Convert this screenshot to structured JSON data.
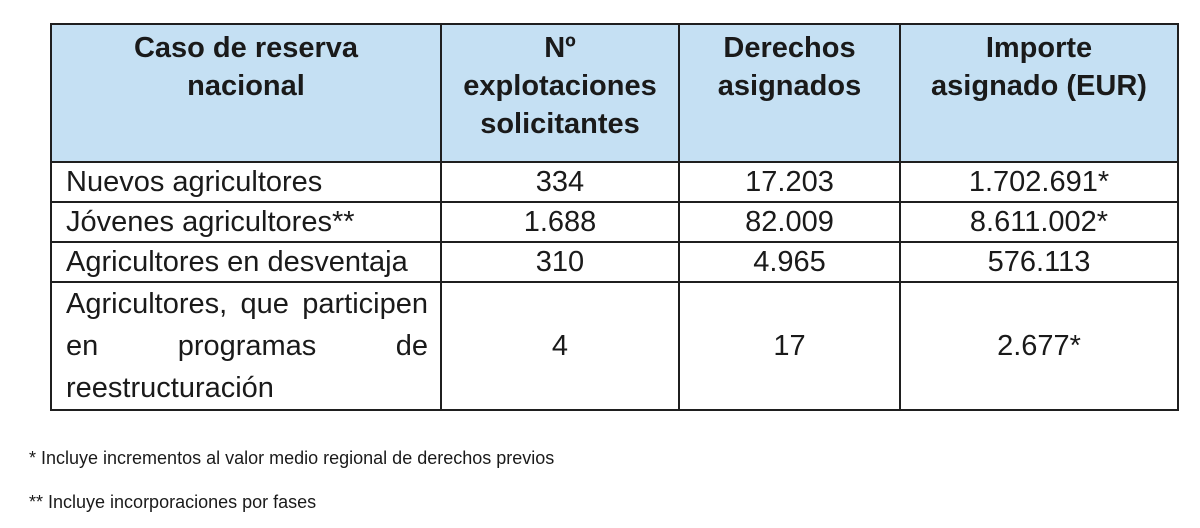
{
  "table": {
    "headers": [
      "Caso de reserva nacional",
      "Nº explotaciones solicitantes",
      "Derechos asignados",
      "Importe asignado (EUR)"
    ],
    "rows": [
      [
        "Nuevos agricultores",
        "334",
        "17.203",
        "1.702.691*"
      ],
      [
        "Jóvenes agricultores**",
        "1.688",
        "82.009",
        "8.611.002*"
      ],
      [
        "Agricultores en desventaja",
        "310",
        "4.965",
        "576.113"
      ],
      [
        "Agricultores, que participen en programas de reestructuración",
        "4",
        "17",
        "2.677*"
      ]
    ]
  },
  "footnotes": [
    "* Incluye incrementos al valor medio regional de derechos previos",
    "** Incluye incorporaciones por fases"
  ],
  "colors": {
    "header_background": "#c5e0f3",
    "border": "#1f1f1f"
  }
}
